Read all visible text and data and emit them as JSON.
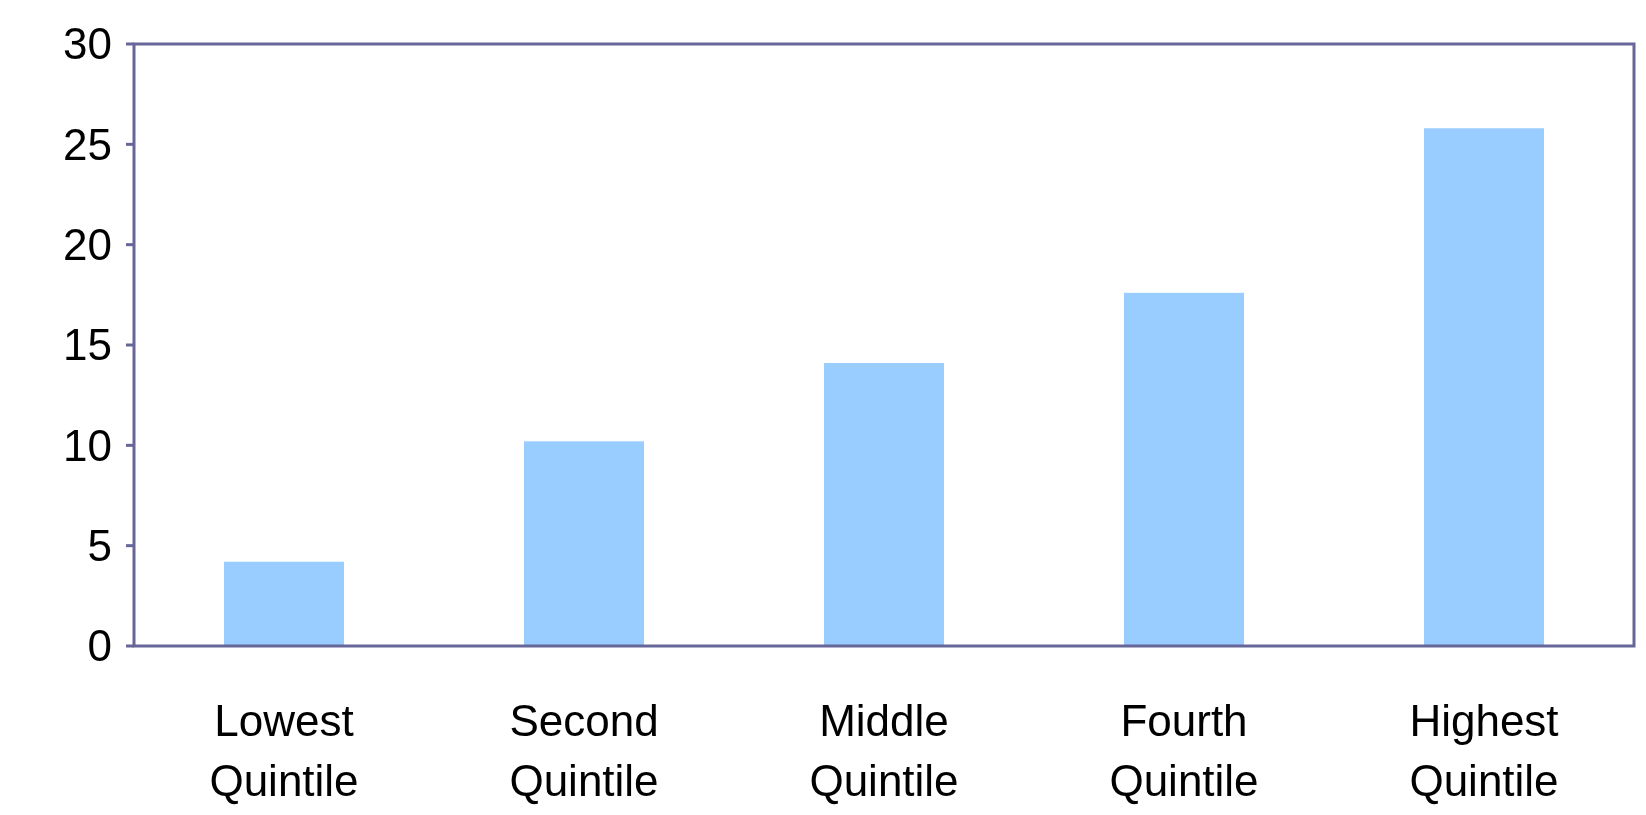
{
  "chart_data": {
    "type": "bar",
    "categories": [
      "Lowest Quintile",
      "Second Quintile",
      "Middle Quintile",
      "Fourth Quintile",
      "Highest Quintile"
    ],
    "values": [
      4.2,
      10.2,
      14.1,
      17.6,
      25.8
    ],
    "color": "#99ccff",
    "ylim": [
      0,
      30
    ],
    "yticks": [
      0,
      5,
      10,
      15,
      20,
      25,
      30
    ],
    "grid": false
  }
}
